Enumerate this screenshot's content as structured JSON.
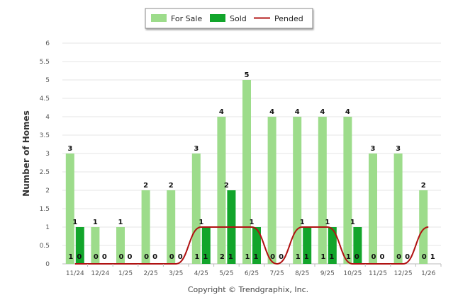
{
  "chart_data": {
    "type": "bar",
    "title": "",
    "xlabel": "",
    "ylabel": "Number of Homes",
    "ylim": [
      0,
      6
    ],
    "yticks": [
      "0",
      "0.5",
      "1",
      "1.5",
      "2",
      "2.5",
      "3",
      "3.5",
      "4",
      "4.5",
      "5",
      "5.5",
      "6"
    ],
    "categories": [
      "11/24",
      "12/24",
      "1/25",
      "2/25",
      "3/25",
      "4/25",
      "5/25",
      "6/25",
      "7/25",
      "8/25",
      "9/25",
      "10/25",
      "11/25",
      "12/25",
      "1/26"
    ],
    "series": [
      {
        "name": "For Sale",
        "kind": "bar",
        "color": "#9ddc8b",
        "values": [
          3,
          1,
          1,
          2,
          2,
          3,
          4,
          5,
          4,
          4,
          4,
          4,
          3,
          3,
          2
        ]
      },
      {
        "name": "Sold",
        "kind": "bar",
        "color": "#12a52b",
        "values": [
          1,
          0,
          0,
          0,
          0,
          1,
          2,
          1,
          0,
          1,
          1,
          1,
          0,
          0,
          0
        ]
      },
      {
        "name": "Pended",
        "kind": "line",
        "color": "#b01212",
        "values": [
          0,
          0,
          0,
          0,
          0,
          1,
          1,
          1,
          0,
          1,
          1,
          0,
          0,
          0,
          1
        ]
      }
    ],
    "legend_position": "top-center",
    "grid": true
  },
  "footer": {
    "credit": "Copyright © Trendgraphix, Inc."
  }
}
